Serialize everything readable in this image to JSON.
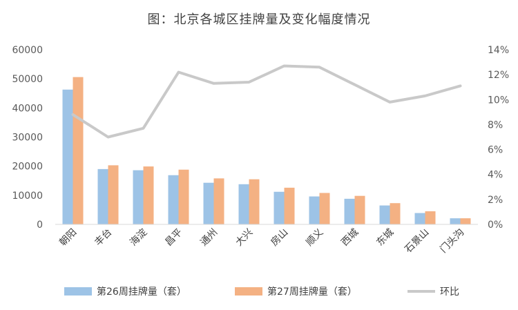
{
  "chart_data": {
    "type": "bar+line",
    "title": "图：北京各城区挂牌量及变化幅度情况",
    "categories": [
      "朝阳",
      "丰台",
      "海淀",
      "昌平",
      "通州",
      "大兴",
      "房山",
      "顺义",
      "西城",
      "东城",
      "石景山",
      "门头沟"
    ],
    "series": [
      {
        "name": "第26周挂牌量（套）",
        "type": "bar",
        "axis": "left",
        "color": "#9DC3E6",
        "values": [
          46300,
          19000,
          18600,
          16900,
          14300,
          13800,
          11200,
          9600,
          8800,
          6500,
          3900,
          2100
        ]
      },
      {
        "name": "第27周挂牌量（套）",
        "type": "bar",
        "axis": "left",
        "color": "#F4B183",
        "values": [
          50600,
          20300,
          19900,
          18800,
          15800,
          15500,
          12600,
          10800,
          9800,
          7300,
          4500,
          2100
        ]
      },
      {
        "name": "环比",
        "type": "line",
        "axis": "right",
        "color": "#C9C9C9",
        "values": [
          0.088,
          0.07,
          0.077,
          0.122,
          0.113,
          0.114,
          0.127,
          0.126,
          0.112,
          0.098,
          0.103,
          0.111
        ]
      }
    ],
    "y_left": {
      "min": 0,
      "max": 60000,
      "ticks": [
        0,
        10000,
        20000,
        30000,
        40000,
        50000,
        60000
      ],
      "tick_labels": [
        "0",
        "10000",
        "20000",
        "30000",
        "40000",
        "50000",
        "60000"
      ]
    },
    "y_right": {
      "min": 0,
      "max": 0.14,
      "ticks": [
        0,
        0.02,
        0.04,
        0.06,
        0.08,
        0.1,
        0.12,
        0.14
      ],
      "tick_labels": [
        "0%",
        "2%",
        "4%",
        "6%",
        "8%",
        "10%",
        "12%",
        "14%"
      ]
    },
    "grid": false,
    "legend_position": "bottom"
  }
}
